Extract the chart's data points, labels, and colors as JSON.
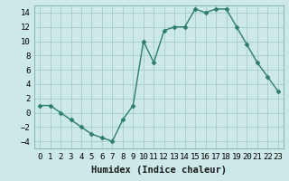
{
  "x": [
    0,
    1,
    2,
    3,
    4,
    5,
    6,
    7,
    8,
    9,
    10,
    11,
    12,
    13,
    14,
    15,
    16,
    17,
    18,
    19,
    20,
    21,
    22,
    23
  ],
  "y": [
    1,
    1,
    0,
    -1,
    -2,
    -3,
    -3.5,
    -4,
    -1,
    1,
    10,
    7,
    11.5,
    12,
    12,
    14.5,
    14,
    14.5,
    14.5,
    12,
    9.5,
    7,
    5,
    3
  ],
  "line_color": "#2d7d6e",
  "marker": "D",
  "marker_size": 2.5,
  "bg_color": "#cce8e8",
  "grid_color": "#aacfcf",
  "xlabel": "Humidex (Indice chaleur)",
  "ylim": [
    -5,
    15
  ],
  "xlim": [
    -0.5,
    23.5
  ],
  "yticks": [
    -4,
    -2,
    0,
    2,
    4,
    6,
    8,
    10,
    12,
    14
  ],
  "xtick_labels": [
    "0",
    "1",
    "2",
    "3",
    "4",
    "5",
    "6",
    "7",
    "8",
    "9",
    "10",
    "11",
    "12",
    "13",
    "14",
    "15",
    "16",
    "17",
    "18",
    "19",
    "20",
    "21",
    "22",
    "23"
  ],
  "xlabel_fontsize": 7.5,
  "tick_fontsize": 6.5,
  "line_width": 1.0
}
